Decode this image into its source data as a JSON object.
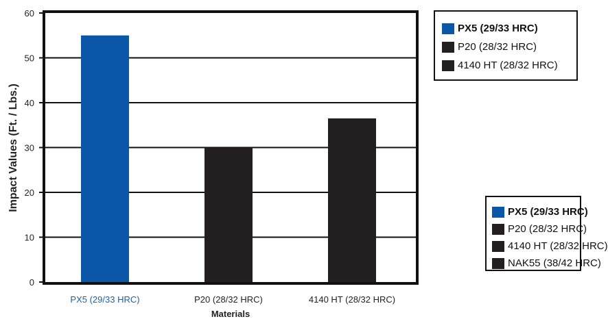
{
  "chart_data": {
    "type": "bar",
    "categories": [
      "PX5 (29/33 HRC)",
      "P20 (28/32 HRC)",
      "4140 HT (28/32 HRC)"
    ],
    "values": [
      55,
      30,
      36.5
    ],
    "bar_colors": [
      "#0a57a8",
      "#231f20",
      "#231f20"
    ],
    "category_label_colors": [
      "#1f5fa8",
      "#222222",
      "#222222"
    ],
    "xlabel": "Materials",
    "ylabel": "Impact Values (Ft. / Lbs.)",
    "ylim": [
      0,
      60
    ],
    "yticks": [
      "0",
      "10",
      "20",
      "30",
      "40",
      "50",
      "60"
    ],
    "grid": true,
    "legend_placement": "top-right"
  },
  "legend_primary": [
    {
      "label": "PX5 (29/33 HRC)",
      "color": "#0a57a8",
      "bold": true
    },
    {
      "label": "P20 (28/32 HRC)",
      "color": "#231f20",
      "bold": false
    },
    {
      "label": "4140 HT (28/32 HRC)",
      "color": "#231f20",
      "bold": false
    }
  ],
  "legend_secondary": [
    {
      "label": "PX5 (29/33 HRC)",
      "color": "#0a57a8",
      "bold": true
    },
    {
      "label": "P20 (28/32 HRC)",
      "color": "#231f20",
      "bold": false
    },
    {
      "label": "4140 HT (28/32 HRC)",
      "color": "#231f20",
      "bold": false
    },
    {
      "label": "NAK55 (38/42 HRC)",
      "color": "#231f20",
      "bold": false
    }
  ]
}
